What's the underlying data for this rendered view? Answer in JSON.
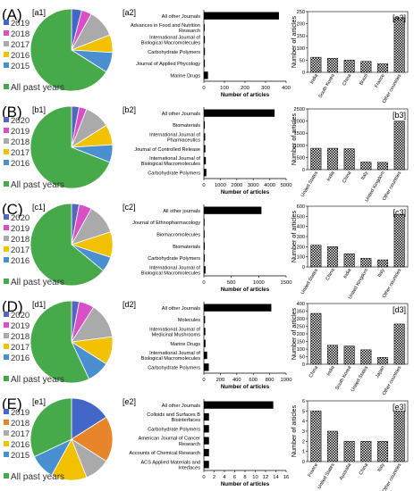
{
  "figure": {
    "rows": [
      {
        "letter": "(A)",
        "pie": {
          "label": "[a1]",
          "years": [
            "2019",
            "2018",
            "2017",
            "2016",
            "2015"
          ],
          "all_past": "All past years",
          "slices": [
            {
              "name": "2019",
              "value": 4,
              "color": "#4466c8"
            },
            {
              "name": "2018",
              "value": 4,
              "color": "#d94fc8"
            },
            {
              "name": "2017",
              "value": 11,
              "color": "#aaaaaa"
            },
            {
              "name": "2016",
              "value": 7,
              "color": "#f2c200"
            },
            {
              "name": "2015",
              "value": 8,
              "color": "#4a90d0"
            },
            {
              "name": "All past years",
              "value": 66,
              "color": "#46a94a"
            }
          ]
        },
        "journals": {
          "label": "[a2]",
          "type": "bar",
          "categories": [
            "All other Journals",
            "Advances in Food and Nutrition Research",
            "International Journal of Biological Macromolecules",
            "Carbohydrate Polymers",
            "Journal of Applied Phycology",
            "Marine Drugs"
          ],
          "values": [
            365,
            4,
            5,
            5,
            5,
            20
          ],
          "xlabel": "Number of articles",
          "xticks": [
            0,
            100,
            200,
            300,
            400
          ],
          "xlim": [
            0,
            400
          ]
        },
        "countries": {
          "label": "[a3]",
          "type": "bar",
          "categories": [
            "India",
            "South Korea",
            "China",
            "Brazil",
            "France",
            "Other countries"
          ],
          "values": [
            62,
            58,
            50,
            45,
            35,
            225
          ],
          "ylabel": "Number of articles",
          "yticks": [
            0,
            50,
            100,
            150,
            200,
            250
          ],
          "ylim": [
            0,
            250
          ]
        }
      },
      {
        "letter": "(B)",
        "pie": {
          "label": "[b1]",
          "years": [
            "2020",
            "2019",
            "2018",
            "2017",
            "2016"
          ],
          "all_past": "All past years",
          "slices": [
            {
              "name": "2020",
              "value": 3,
              "color": "#5566c0"
            },
            {
              "name": "2019",
              "value": 3,
              "color": "#d94fc8"
            },
            {
              "name": "2018",
              "value": 10,
              "color": "#aaaaaa"
            },
            {
              "name": "2017",
              "value": 8,
              "color": "#f2c200"
            },
            {
              "name": "2016",
              "value": 7,
              "color": "#4a90d0"
            },
            {
              "name": "All past years",
              "value": 69,
              "color": "#46a94a"
            }
          ]
        },
        "journals": {
          "label": "[b2]",
          "type": "bar",
          "categories": [
            "All other Journals",
            "Biomaterials",
            "International Journal of Pharmaceutics",
            "Journal of Controlled Release",
            "International Journal of Biological Macromolecules",
            "Carbohydrate Polymers"
          ],
          "values": [
            4300,
            60,
            80,
            90,
            120,
            150
          ],
          "xlabel": "Number of articles",
          "xticks": [
            0,
            1000,
            2000,
            3000,
            4000,
            5000
          ],
          "xlim": [
            0,
            5000
          ]
        },
        "countries": {
          "label": "[b3]",
          "type": "bar",
          "categories": [
            "United States",
            "India",
            "China",
            "Italy",
            "United Kingdom",
            "Other countries"
          ],
          "values": [
            880,
            880,
            860,
            310,
            300,
            2000
          ],
          "ylabel": "Number of articles",
          "yticks": [
            0,
            500,
            1000,
            1500,
            2000,
            2500
          ],
          "ylim": [
            0,
            2500
          ]
        }
      },
      {
        "letter": "(C)",
        "pie": {
          "label": "[c1]",
          "years": [
            "2020",
            "2019",
            "2018",
            "2017",
            "2016"
          ],
          "all_past": "All past years",
          "slices": [
            {
              "name": "2020",
              "value": 3,
              "color": "#5566c0"
            },
            {
              "name": "2019",
              "value": 5,
              "color": "#d94fc8"
            },
            {
              "name": "2018",
              "value": 12,
              "color": "#aaaaaa"
            },
            {
              "name": "2017",
              "value": 10,
              "color": "#f2c200"
            },
            {
              "name": "2016",
              "value": 6,
              "color": "#4a90d0"
            },
            {
              "name": "All past years",
              "value": 64,
              "color": "#46a94a"
            }
          ]
        },
        "journals": {
          "label": "[c2]",
          "type": "bar",
          "categories": [
            "All other journals",
            "Journal of Ethnopharmacology",
            "Biomacromolecules",
            "Biomaterials",
            "Carbohydrate Polymers",
            "International Journal of Biological Macromolecules"
          ],
          "values": [
            1050,
            12,
            14,
            16,
            18,
            30
          ],
          "xlabel": "Number of articles",
          "xticks": [
            0,
            500,
            1000,
            1500
          ],
          "xlim": [
            0,
            1500
          ]
        },
        "countries": {
          "label": "[c3]",
          "type": "bar",
          "categories": [
            "United States",
            "China",
            "India",
            "United Kingdom",
            "Italy",
            "Other countries"
          ],
          "values": [
            215,
            200,
            130,
            85,
            70,
            520
          ],
          "ylabel": "Number of articles",
          "yticks": [
            0,
            100,
            200,
            300,
            400,
            500,
            600
          ],
          "ylim": [
            0,
            600
          ]
        }
      },
      {
        "letter": "(D)",
        "pie": {
          "label": "[d1]",
          "years": [
            "2020",
            "2019",
            "2018",
            "2017",
            "2016"
          ],
          "all_past": "All past years",
          "slices": [
            {
              "name": "2020",
              "value": 3,
              "color": "#5566c0"
            },
            {
              "name": "2019",
              "value": 6,
              "color": "#d94fc8"
            },
            {
              "name": "2018",
              "value": 14,
              "color": "#aaaaaa"
            },
            {
              "name": "2017",
              "value": 11,
              "color": "#f2c200"
            },
            {
              "name": "2016",
              "value": 9,
              "color": "#4a90d0"
            },
            {
              "name": "All past years",
              "value": 57,
              "color": "#46a94a"
            }
          ]
        },
        "journals": {
          "label": "[d2]",
          "type": "bar",
          "categories": [
            "All other Journals",
            "Molecules",
            "International Journal of Medicinal Mushrooms",
            "Marine Drugs",
            "International Journal of Biological Macromolecules",
            "Carbohydrate Polymers"
          ],
          "values": [
            820,
            15,
            18,
            20,
            40,
            60
          ],
          "xlabel": "Number of articles",
          "xticks": [
            0,
            200,
            400,
            600,
            800,
            1000
          ],
          "xlim": [
            0,
            1000
          ]
        },
        "countries": {
          "label": "[d3]",
          "type": "bar",
          "categories": [
            "China",
            "India",
            "South Korea",
            "United States",
            "Japan",
            "Other countries"
          ],
          "values": [
            335,
            125,
            120,
            95,
            45,
            265
          ],
          "ylabel": "Number of articles",
          "yticks": [
            0,
            50,
            100,
            150,
            200,
            250,
            300,
            350,
            400
          ],
          "ylim": [
            0,
            400
          ]
        }
      },
      {
        "letter": "(E)",
        "pie": {
          "label": "[e1]",
          "years": [
            "2019",
            "2018",
            "2017",
            "2016",
            "2015"
          ],
          "all_past": "All past years",
          "slices": [
            {
              "name": "2019",
              "value": 16,
              "color": "#4466c8"
            },
            {
              "name": "2018",
              "value": 18,
              "color": "#e8842a"
            },
            {
              "name": "2017",
              "value": 10,
              "color": "#aaaaaa"
            },
            {
              "name": "2016",
              "value": 14,
              "color": "#f2c200"
            },
            {
              "name": "2015",
              "value": 10,
              "color": "#4a90d0"
            },
            {
              "name": "All past years",
              "value": 32,
              "color": "#46a94a"
            }
          ]
        },
        "journals": {
          "label": "[e2]",
          "type": "bar",
          "categories": [
            "All other Journals",
            "Colloids and Surfaces B Biointerfaces",
            "Carbohydrate Polymers",
            "American Journal of Cancer Research",
            "Accounts of Chemical Research",
            "ACS Applied Materials and Interfaces"
          ],
          "values": [
            13.5,
            1,
            1,
            1,
            1,
            1
          ],
          "xlabel": "Number of articles",
          "xticks": [
            0,
            2,
            4,
            6,
            8,
            10,
            12,
            14,
            16
          ],
          "xlim": [
            0,
            16
          ]
        },
        "countries": {
          "label": "[e3]",
          "type": "bar",
          "categories": [
            "France",
            "United States",
            "Australia",
            "China",
            "Italy",
            "Other countries"
          ],
          "values": [
            5,
            3,
            2,
            2,
            2,
            5
          ],
          "ylabel": "Number of articles",
          "yticks": [
            0,
            1,
            2,
            3,
            4,
            5,
            6
          ],
          "ylim": [
            0,
            6
          ]
        }
      }
    ]
  }
}
